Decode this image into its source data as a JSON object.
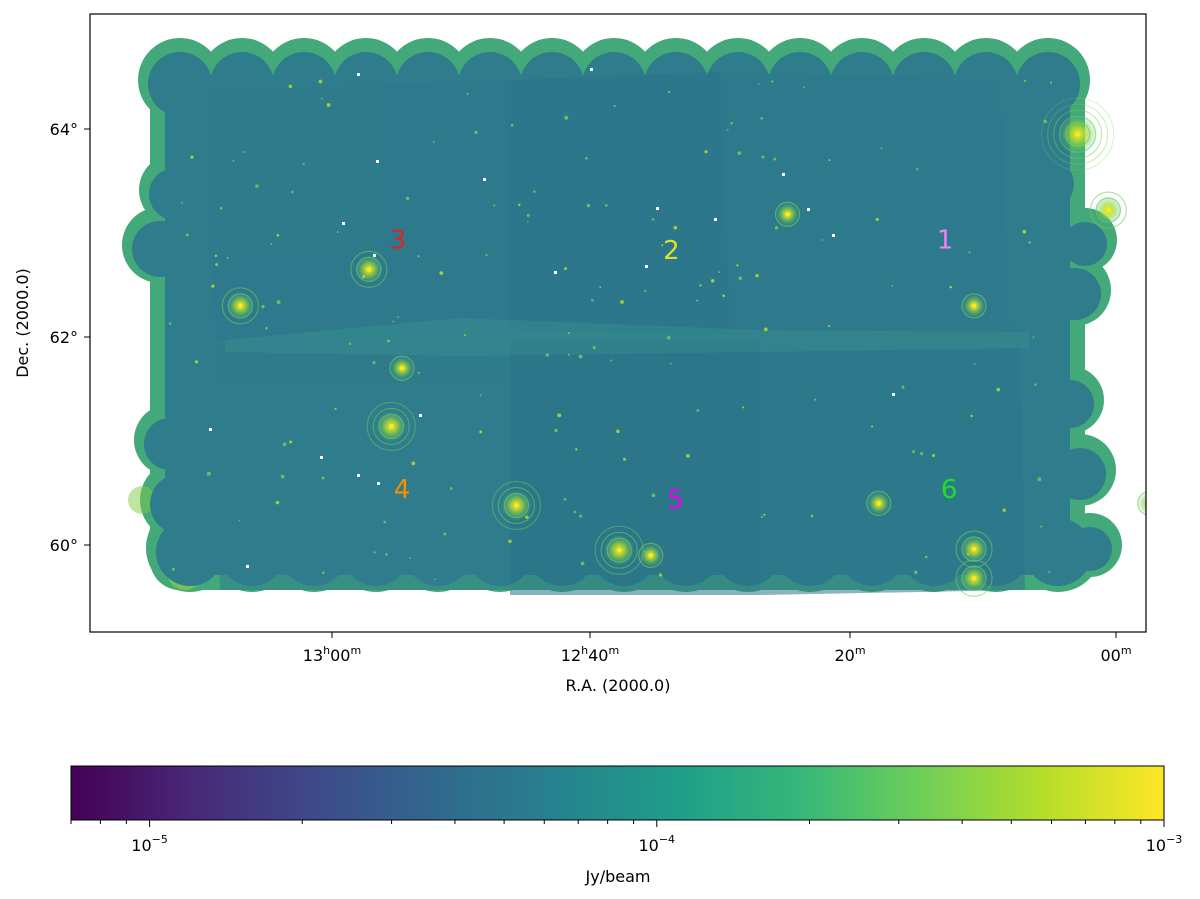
{
  "chart_data": {
    "type": "heatmap",
    "title": "",
    "xlabel": "R.A. (2000.0)",
    "ylabel": "Dec. (2000.0)",
    "x_ticks": [
      {
        "label": "13",
        "sup1": "h",
        "mid": "00",
        "sup2": "m"
      },
      {
        "label": "12",
        "sup1": "h",
        "mid": "40",
        "sup2": "m"
      },
      {
        "label": "",
        "sup1": "",
        "mid": "20",
        "sup2": "m"
      },
      {
        "label": "",
        "sup1": "",
        "mid": "00",
        "sup2": "m"
      }
    ],
    "y_ticks": [
      {
        "label": "64°",
        "value": 64
      },
      {
        "label": "62°",
        "value": 62
      },
      {
        "label": "60°",
        "value": 60
      }
    ],
    "ylim": [
      58.65,
      64.6
    ],
    "colorbar": {
      "label": "Jy/beam",
      "scale": "log",
      "range": [
        7e-06,
        0.001
      ],
      "ticks": [
        {
          "base": "10",
          "exp": "−5",
          "value": 1e-05
        },
        {
          "base": "10",
          "exp": "−4",
          "value": 0.0001
        },
        {
          "base": "10",
          "exp": "−3",
          "value": 0.001
        }
      ],
      "colormap": [
        "#440154",
        "#482878",
        "#3e4a89",
        "#31688e",
        "#26828e",
        "#1f9e89",
        "#35b779",
        "#6ece58",
        "#b5de2b",
        "#fde725"
      ]
    },
    "field_labels": [
      {
        "text": "1",
        "color": "#ee82ee",
        "ra_h": 12.275,
        "dec": 62.85
      },
      {
        "text": "2",
        "color": "#e0e020",
        "ra_h": 12.605,
        "dec": 62.75
      },
      {
        "text": "3",
        "color": "#d62728",
        "ra_h": 12.935,
        "dec": 62.85
      },
      {
        "text": "4",
        "color": "#ff8c00",
        "ra_h": 12.93,
        "dec": 60.45
      },
      {
        "text": "5",
        "color": "#ee00ee",
        "ra_h": 12.6,
        "dec": 60.35
      },
      {
        "text": "6",
        "color": "#22dd22",
        "ra_h": 12.27,
        "dec": 60.45
      }
    ],
    "bright_sources": [
      {
        "ra_h": 12.115,
        "dec": 63.95,
        "rings": 5
      },
      {
        "ra_h": 12.792,
        "dec": 60.38,
        "rings": 3
      },
      {
        "ra_h": 12.943,
        "dec": 61.14,
        "rings": 3
      },
      {
        "ra_h": 12.668,
        "dec": 59.95,
        "rings": 3
      },
      {
        "ra_h": 12.24,
        "dec": 59.96,
        "rings": 2
      },
      {
        "ra_h": 12.24,
        "dec": 59.68,
        "rings": 2
      },
      {
        "ra_h": 12.078,
        "dec": 63.22,
        "rings": 2
      },
      {
        "ra_h": 12.97,
        "dec": 62.65,
        "rings": 2
      },
      {
        "ra_h": 13.125,
        "dec": 62.3,
        "rings": 2
      },
      {
        "ra_h": 12.465,
        "dec": 63.18,
        "rings": 1
      },
      {
        "ra_h": 12.028,
        "dec": 60.4,
        "rings": 1
      },
      {
        "ra_h": 12.355,
        "dec": 60.4,
        "rings": 1
      },
      {
        "ra_h": 12.24,
        "dec": 62.3,
        "rings": 1
      },
      {
        "ra_h": 12.93,
        "dec": 61.7,
        "rings": 1
      },
      {
        "ra_h": 12.63,
        "dec": 59.9,
        "rings": 1
      }
    ]
  }
}
